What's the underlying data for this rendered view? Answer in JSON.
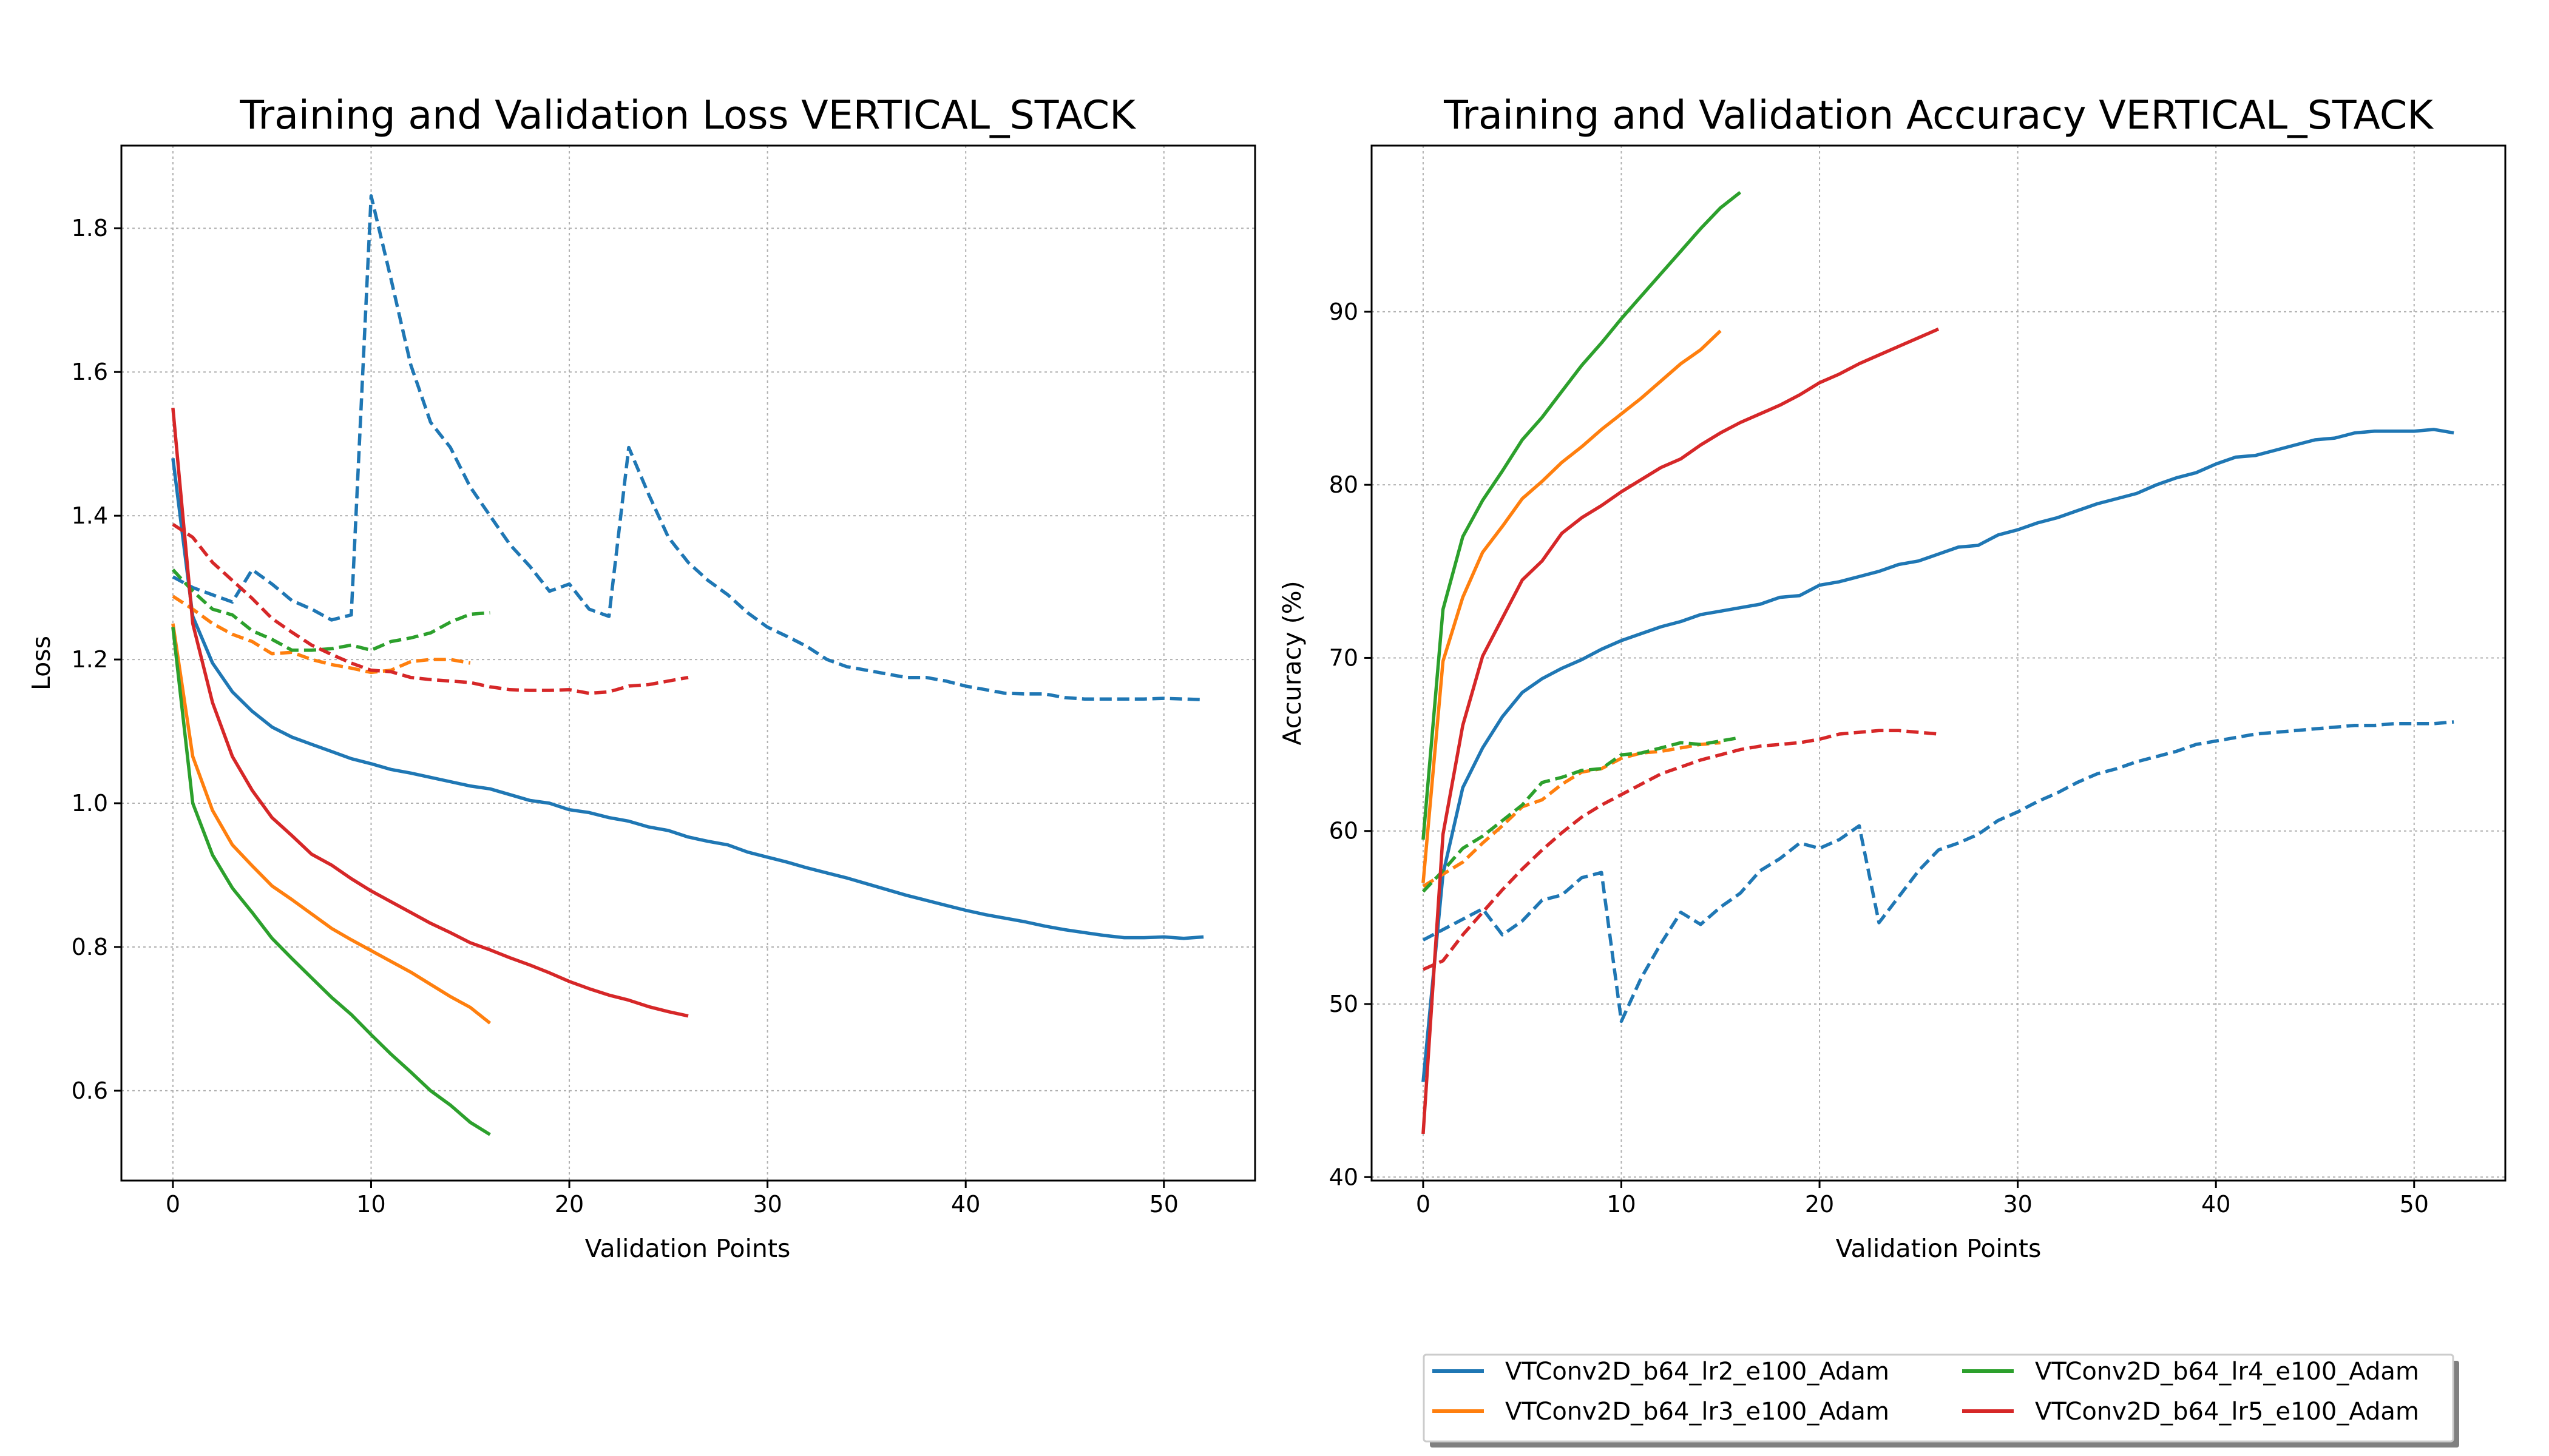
{
  "figure": {
    "legend_placement": "bottom-right (below right chart)",
    "legend_entries": [
      {
        "label": "VTConv2D_b64_lr2_e100_Adam",
        "color": "#1f77b4"
      },
      {
        "label": "VTConv2D_b64_lr3_e100_Adam",
        "color": "#ff7f0e"
      },
      {
        "label": "VTConv2D_b64_lr4_e100_Adam",
        "color": "#2ca02c"
      },
      {
        "label": "VTConv2D_b64_lr5_e100_Adam",
        "color": "#d62728"
      }
    ]
  },
  "chart_data": [
    {
      "type": "line",
      "title": "Training and Validation Loss VERTICAL_STACK",
      "xlabel": "Validation Points",
      "ylabel": "Loss",
      "xlim": [
        -2.6,
        54.6
      ],
      "ylim": [
        0.475,
        1.915
      ],
      "xticks": [
        0,
        10,
        20,
        30,
        40,
        50
      ],
      "yticks": [
        0.6,
        0.8,
        1.0,
        1.2,
        1.4,
        1.6,
        1.8
      ],
      "ytick_labels": [
        "0.6",
        "0.8",
        "1.0",
        "1.2",
        "1.4",
        "1.6",
        "1.8"
      ],
      "grid": true,
      "series": [
        {
          "name": "VTConv2D_b64_lr2_e100_Adam",
          "style": "solid",
          "color": "#1f77b4",
          "values": [
            1.48,
            1.26,
            1.195,
            1.155,
            1.128,
            1.106,
            1.092,
            1.082,
            1.072,
            1.062,
            1.055,
            1.047,
            1.042,
            1.036,
            1.03,
            1.024,
            1.02,
            1.012,
            1.004,
            1.0,
            0.991,
            0.987,
            0.98,
            0.975,
            0.967,
            0.962,
            0.953,
            0.947,
            0.942,
            0.932,
            0.925,
            0.918,
            0.91,
            0.903,
            0.896,
            0.888,
            0.88,
            0.872,
            0.865,
            0.858,
            0.851,
            0.845,
            0.84,
            0.835,
            0.829,
            0.824,
            0.82,
            0.816,
            0.813,
            0.813,
            0.814,
            0.812,
            0.814
          ]
        },
        {
          "name": "VTConv2D_b64_lr2_e100_Adam",
          "style": "dashed",
          "color": "#1f77b4",
          "values": [
            1.315,
            1.3,
            1.29,
            1.28,
            1.325,
            1.305,
            1.282,
            1.27,
            1.255,
            1.262,
            1.845,
            1.73,
            1.61,
            1.53,
            1.495,
            1.44,
            1.4,
            1.36,
            1.33,
            1.295,
            1.305,
            1.27,
            1.26,
            1.495,
            1.43,
            1.37,
            1.335,
            1.31,
            1.29,
            1.265,
            1.245,
            1.232,
            1.218,
            1.2,
            1.19,
            1.185,
            1.18,
            1.175,
            1.175,
            1.17,
            1.163,
            1.158,
            1.153,
            1.152,
            1.152,
            1.147,
            1.145,
            1.145,
            1.145,
            1.145,
            1.146,
            1.145,
            1.144
          ]
        },
        {
          "name": "VTConv2D_b64_lr3_e100_Adam",
          "style": "solid",
          "color": "#ff7f0e",
          "values": [
            1.25,
            1.065,
            0.99,
            0.942,
            0.913,
            0.885,
            0.866,
            0.846,
            0.826,
            0.81,
            0.795,
            0.78,
            0.765,
            0.748,
            0.731,
            0.716,
            0.694
          ]
        },
        {
          "name": "VTConv2D_b64_lr3_e100_Adam",
          "style": "dashed",
          "color": "#ff7f0e",
          "values": [
            1.288,
            1.27,
            1.25,
            1.235,
            1.225,
            1.208,
            1.21,
            1.2,
            1.193,
            1.188,
            1.182,
            1.185,
            1.197,
            1.2,
            1.2,
            1.195
          ]
        },
        {
          "name": "VTConv2D_b64_lr4_e100_Adam",
          "style": "solid",
          "color": "#2ca02c",
          "values": [
            1.245,
            1.0,
            0.928,
            0.882,
            0.848,
            0.812,
            0.784,
            0.757,
            0.73,
            0.706,
            0.678,
            0.651,
            0.626,
            0.6,
            0.58,
            0.556,
            0.539
          ]
        },
        {
          "name": "VTConv2D_b64_lr4_e100_Adam",
          "style": "dashed",
          "color": "#2ca02c",
          "values": [
            1.325,
            1.295,
            1.27,
            1.262,
            1.24,
            1.228,
            1.213,
            1.213,
            1.215,
            1.22,
            1.213,
            1.225,
            1.23,
            1.237,
            1.252,
            1.263,
            1.265
          ]
        },
        {
          "name": "VTConv2D_b64_lr5_e100_Adam",
          "style": "solid",
          "color": "#d62728",
          "values": [
            1.55,
            1.25,
            1.14,
            1.065,
            1.018,
            0.98,
            0.955,
            0.929,
            0.914,
            0.895,
            0.878,
            0.863,
            0.848,
            0.833,
            0.82,
            0.806,
            0.796,
            0.785,
            0.775,
            0.764,
            0.752,
            0.742,
            0.733,
            0.726,
            0.717,
            0.71,
            0.704
          ]
        },
        {
          "name": "VTConv2D_b64_lr5_e100_Adam",
          "style": "dashed",
          "color": "#d62728",
          "values": [
            1.388,
            1.37,
            1.335,
            1.31,
            1.285,
            1.257,
            1.238,
            1.22,
            1.207,
            1.195,
            1.185,
            1.183,
            1.175,
            1.172,
            1.17,
            1.168,
            1.162,
            1.158,
            1.157,
            1.157,
            1.158,
            1.153,
            1.155,
            1.163,
            1.165,
            1.17,
            1.175
          ]
        }
      ]
    },
    {
      "type": "line",
      "title": "Training and Validation Accuracy VERTICAL_STACK",
      "xlabel": "Validation Points",
      "ylabel": "Accuracy (%)",
      "xlim": [
        -2.6,
        54.6
      ],
      "ylim": [
        39.8,
        99.6
      ],
      "xticks": [
        0,
        10,
        20,
        30,
        40,
        50
      ],
      "yticks": [
        40,
        50,
        60,
        70,
        80,
        90
      ],
      "ytick_labels": [
        "40",
        "50",
        "60",
        "70",
        "80",
        "90"
      ],
      "grid": true,
      "series": [
        {
          "name": "VTConv2D_b64_lr2_e100_Adam",
          "style": "solid",
          "color": "#1f77b4",
          "values": [
            45.5,
            57.5,
            62.5,
            64.8,
            66.6,
            68.0,
            68.8,
            69.4,
            69.9,
            70.5,
            71.0,
            71.4,
            71.8,
            72.1,
            72.5,
            72.7,
            72.9,
            73.1,
            73.5,
            73.6,
            74.2,
            74.4,
            74.7,
            75.0,
            75.4,
            75.6,
            76.0,
            76.4,
            76.5,
            77.1,
            77.4,
            77.8,
            78.1,
            78.5,
            78.9,
            79.2,
            79.5,
            80.0,
            80.4,
            80.7,
            81.2,
            81.6,
            81.7,
            82.0,
            82.3,
            82.6,
            82.7,
            83.0,
            83.1,
            83.1,
            83.1,
            83.2,
            83.0
          ]
        },
        {
          "name": "VTConv2D_b64_lr2_e100_Adam",
          "style": "dashed",
          "color": "#1f77b4",
          "values": [
            53.7,
            54.3,
            54.9,
            55.5,
            54.0,
            54.8,
            56.0,
            56.3,
            57.3,
            57.6,
            49.0,
            51.5,
            53.5,
            55.3,
            54.6,
            55.6,
            56.4,
            57.7,
            58.4,
            59.3,
            59.0,
            59.5,
            60.3,
            54.7,
            56.2,
            57.7,
            58.9,
            59.3,
            59.8,
            60.6,
            61.1,
            61.7,
            62.2,
            62.8,
            63.3,
            63.6,
            64.0,
            64.3,
            64.6,
            65.0,
            65.2,
            65.4,
            65.6,
            65.7,
            65.8,
            65.9,
            66.0,
            66.1,
            66.1,
            66.2,
            66.2,
            66.2,
            66.3
          ]
        },
        {
          "name": "VTConv2D_b64_lr3_e100_Adam",
          "style": "solid",
          "color": "#ff7f0e",
          "values": [
            57.0,
            69.8,
            73.5,
            76.1,
            77.6,
            79.2,
            80.2,
            81.3,
            82.2,
            83.2,
            84.1,
            85.0,
            86.0,
            87.0,
            87.8,
            88.9
          ]
        },
        {
          "name": "VTConv2D_b64_lr3_e100_Adam",
          "style": "dashed",
          "color": "#ff7f0e",
          "values": [
            56.8,
            57.5,
            58.2,
            59.3,
            60.3,
            61.4,
            61.8,
            62.7,
            63.4,
            63.6,
            64.2,
            64.5,
            64.6,
            64.8,
            65.0,
            65.1
          ]
        },
        {
          "name": "VTConv2D_b64_lr4_e100_Adam",
          "style": "solid",
          "color": "#2ca02c",
          "values": [
            59.5,
            72.8,
            77.0,
            79.1,
            80.8,
            82.6,
            83.9,
            85.4,
            86.9,
            88.2,
            89.6,
            90.9,
            92.2,
            93.5,
            94.8,
            96.0,
            96.9
          ]
        },
        {
          "name": "VTConv2D_b64_lr4_e100_Adam",
          "style": "dashed",
          "color": "#2ca02c",
          "values": [
            56.5,
            57.7,
            59.0,
            59.7,
            60.6,
            61.5,
            62.8,
            63.1,
            63.5,
            63.6,
            64.4,
            64.5,
            64.8,
            65.1,
            65.0,
            65.2,
            65.4
          ]
        },
        {
          "name": "VTConv2D_b64_lr5_e100_Adam",
          "style": "solid",
          "color": "#d62728",
          "values": [
            42.5,
            59.8,
            66.1,
            70.1,
            72.3,
            74.5,
            75.6,
            77.2,
            78.1,
            78.8,
            79.6,
            80.3,
            81.0,
            81.5,
            82.3,
            83.0,
            83.6,
            84.1,
            84.6,
            85.2,
            85.9,
            86.4,
            87.0,
            87.5,
            88.0,
            88.5,
            89.0
          ]
        },
        {
          "name": "VTConv2D_b64_lr5_e100_Adam",
          "style": "dashed",
          "color": "#d62728",
          "values": [
            52.0,
            52.5,
            54.0,
            55.3,
            56.6,
            57.8,
            58.9,
            59.9,
            60.8,
            61.5,
            62.1,
            62.7,
            63.3,
            63.7,
            64.1,
            64.4,
            64.7,
            64.9,
            65.0,
            65.1,
            65.3,
            65.6,
            65.7,
            65.8,
            65.8,
            65.7,
            65.6
          ]
        }
      ]
    }
  ]
}
